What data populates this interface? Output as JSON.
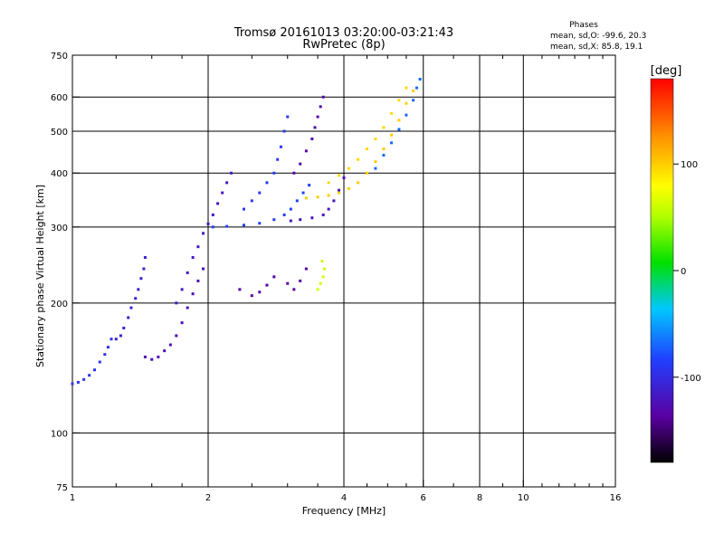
{
  "chart_data": {
    "type": "scatter",
    "title": "Tromsø 20161013 03:20:00-03:21:43",
    "subtitle": "RwPretec (8p)",
    "xlabel": "Frequency [MHz]",
    "ylabel": "Stationary phase Virtual Height [km]",
    "x_scale": "log",
    "y_scale": "log",
    "xlim": [
      1,
      16
    ],
    "ylim": [
      75,
      750
    ],
    "x_ticks": [
      1,
      2,
      4,
      6,
      8,
      10,
      16
    ],
    "x_grid": [
      2,
      4,
      6,
      8,
      10
    ],
    "y_ticks": [
      75,
      100,
      200,
      300,
      400,
      500,
      600,
      750
    ],
    "y_grid": [
      100,
      200,
      300,
      400,
      500,
      600
    ],
    "grid": true,
    "stats": {
      "heading": "Phases",
      "line_o": "mean, sd,O: -99.6, 20.3",
      "line_x": "mean, sd,X:  85.8, 19.1"
    },
    "colorbar": {
      "label": "[deg]",
      "ticks": [
        100,
        0,
        -100
      ],
      "range": [
        -180,
        180
      ]
    },
    "traces": [
      {
        "phase": -95,
        "points": [
          [
            1.0,
            130
          ],
          [
            1.03,
            131
          ],
          [
            1.06,
            133
          ],
          [
            1.09,
            136
          ],
          [
            1.12,
            140
          ],
          [
            1.15,
            146
          ],
          [
            1.18,
            152
          ],
          [
            1.2,
            158
          ],
          [
            1.22,
            165
          ]
        ]
      },
      {
        "phase": -110,
        "points": [
          [
            1.25,
            165
          ],
          [
            1.28,
            168
          ],
          [
            1.3,
            175
          ],
          [
            1.33,
            185
          ],
          [
            1.35,
            195
          ],
          [
            1.38,
            205
          ],
          [
            1.4,
            215
          ],
          [
            1.42,
            228
          ],
          [
            1.44,
            240
          ],
          [
            1.45,
            255
          ]
        ]
      },
      {
        "phase": -125,
        "points": [
          [
            1.45,
            150
          ],
          [
            1.5,
            148
          ],
          [
            1.55,
            150
          ],
          [
            1.6,
            155
          ],
          [
            1.65,
            160
          ],
          [
            1.7,
            168
          ],
          [
            1.75,
            180
          ],
          [
            1.8,
            195
          ],
          [
            1.85,
            210
          ],
          [
            1.9,
            225
          ],
          [
            1.95,
            240
          ]
        ]
      },
      {
        "phase": -115,
        "points": [
          [
            1.7,
            200
          ],
          [
            1.75,
            215
          ],
          [
            1.8,
            235
          ],
          [
            1.85,
            255
          ],
          [
            1.9,
            270
          ],
          [
            1.95,
            290
          ],
          [
            2.0,
            305
          ],
          [
            2.05,
            320
          ],
          [
            2.1,
            340
          ],
          [
            2.15,
            360
          ],
          [
            2.2,
            380
          ],
          [
            2.25,
            400
          ]
        ]
      },
      {
        "phase": -85,
        "points": [
          [
            2.05,
            300
          ],
          [
            2.2,
            301
          ],
          [
            2.4,
            303
          ],
          [
            2.6,
            306
          ],
          [
            2.8,
            312
          ],
          [
            2.95,
            320
          ],
          [
            3.05,
            330
          ],
          [
            3.15,
            345
          ],
          [
            3.25,
            360
          ],
          [
            3.35,
            375
          ]
        ]
      },
      {
        "phase": -90,
        "points": [
          [
            2.4,
            330
          ],
          [
            2.5,
            345
          ],
          [
            2.6,
            360
          ],
          [
            2.7,
            380
          ],
          [
            2.8,
            400
          ],
          [
            2.85,
            430
          ],
          [
            2.9,
            460
          ],
          [
            2.95,
            500
          ],
          [
            3.0,
            540
          ]
        ]
      },
      {
        "phase": -120,
        "points": [
          [
            3.05,
            310
          ],
          [
            3.2,
            312
          ],
          [
            3.4,
            315
          ],
          [
            3.6,
            320
          ],
          [
            3.7,
            330
          ],
          [
            3.8,
            345
          ],
          [
            3.9,
            365
          ],
          [
            4.0,
            390
          ]
        ]
      },
      {
        "phase": -130,
        "points": [
          [
            3.1,
            400
          ],
          [
            3.2,
            420
          ],
          [
            3.3,
            450
          ],
          [
            3.4,
            480
          ],
          [
            3.45,
            510
          ],
          [
            3.5,
            540
          ],
          [
            3.55,
            570
          ],
          [
            3.6,
            600
          ]
        ]
      },
      {
        "phase": -135,
        "points": [
          [
            2.35,
            215
          ],
          [
            2.5,
            208
          ],
          [
            2.6,
            212
          ],
          [
            2.7,
            220
          ],
          [
            2.8,
            230
          ],
          [
            3.0,
            222
          ],
          [
            3.1,
            215
          ],
          [
            3.2,
            225
          ],
          [
            3.3,
            240
          ]
        ]
      },
      {
        "phase": 100,
        "points": [
          [
            3.3,
            350
          ],
          [
            3.5,
            352
          ],
          [
            3.7,
            355
          ],
          [
            3.9,
            360
          ],
          [
            4.1,
            368
          ],
          [
            4.3,
            380
          ],
          [
            4.5,
            400
          ],
          [
            4.7,
            425
          ],
          [
            4.9,
            455
          ],
          [
            5.1,
            490
          ],
          [
            5.3,
            530
          ],
          [
            5.5,
            580
          ],
          [
            5.7,
            620
          ]
        ]
      },
      {
        "phase": 95,
        "points": [
          [
            3.7,
            380
          ],
          [
            3.9,
            395
          ],
          [
            4.1,
            410
          ],
          [
            4.3,
            430
          ],
          [
            4.5,
            455
          ],
          [
            4.7,
            480
          ],
          [
            4.9,
            510
          ],
          [
            5.1,
            550
          ],
          [
            5.3,
            590
          ],
          [
            5.5,
            630
          ]
        ]
      },
      {
        "phase": 60,
        "points": [
          [
            3.5,
            215
          ],
          [
            3.55,
            222
          ],
          [
            3.6,
            230
          ],
          [
            3.62,
            240
          ],
          [
            3.58,
            250
          ]
        ]
      },
      {
        "phase": -70,
        "points": [
          [
            4.7,
            410
          ],
          [
            4.9,
            440
          ],
          [
            5.1,
            470
          ],
          [
            5.3,
            505
          ],
          [
            5.5,
            545
          ],
          [
            5.7,
            590
          ],
          [
            5.8,
            630
          ],
          [
            5.9,
            660
          ]
        ]
      }
    ]
  }
}
